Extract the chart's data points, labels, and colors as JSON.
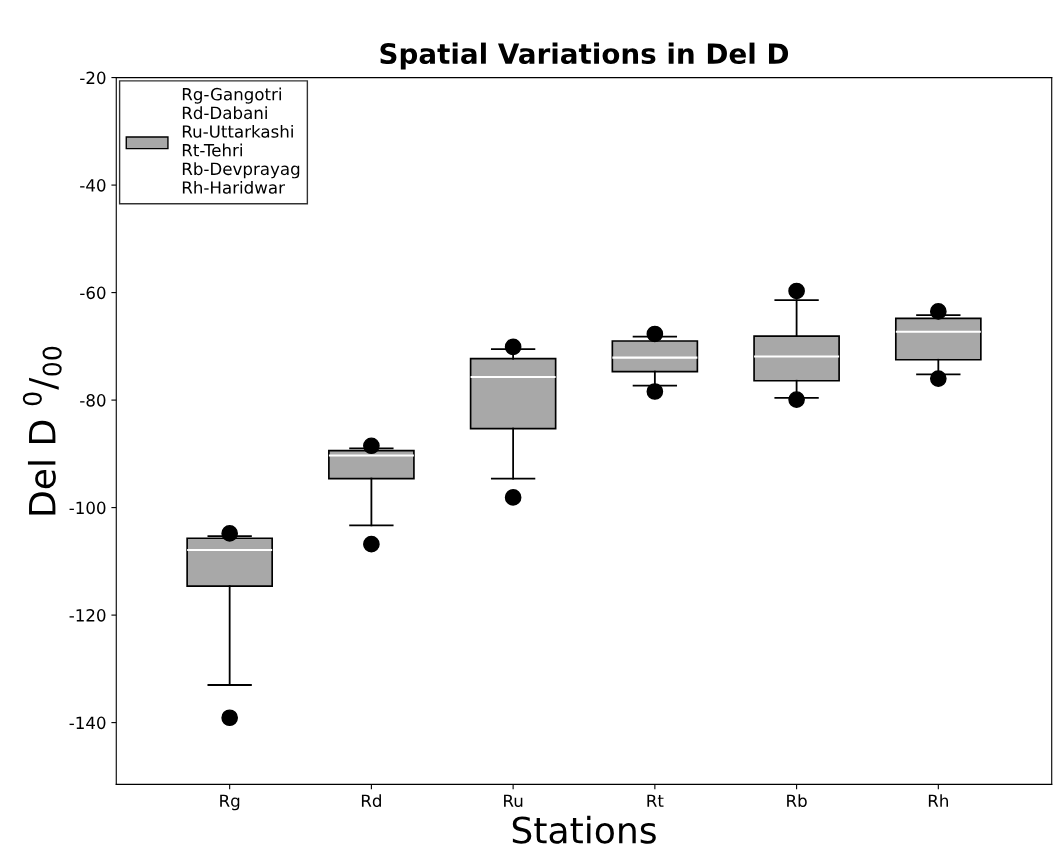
{
  "chart_data": {
    "type": "box",
    "title": "Spatial Variations in Del D",
    "xlabel": "Stations",
    "ylabel": "Del D $^{0}$/$_{00}$",
    "categories": [
      "Rg",
      "Rd",
      "Ru",
      "Rt",
      "Rb",
      "Rh"
    ],
    "series": [
      {
        "name": "Rg-Gangotri\nRd-Dabani\nRu-Uttarkashi\nRt-Tehri\nRb-Devprayag\nRh-Haridwar",
        "color": "#a8a8a8",
        "boxes": [
          {
            "low": -133.0,
            "q1": -114.6,
            "median": -107.9,
            "q3": -105.7,
            "high": -105.3,
            "outliers": [
              -139.1,
              -104.8
            ]
          },
          {
            "low": -103.3,
            "q1": -94.6,
            "median": -90.3,
            "q3": -89.4,
            "high": -89.0,
            "outliers": [
              -106.8,
              -88.5
            ]
          },
          {
            "low": -94.6,
            "q1": -85.3,
            "median": -75.7,
            "q3": -72.3,
            "high": -70.5,
            "outliers": [
              -98.1,
              -70.1
            ]
          },
          {
            "low": -77.3,
            "q1": -74.7,
            "median": -72.1,
            "q3": -69.0,
            "high": -68.2,
            "outliers": [
              -78.4,
              -67.7
            ]
          },
          {
            "low": -79.6,
            "q1": -76.4,
            "median": -71.9,
            "q3": -68.1,
            "high": -61.4,
            "outliers": [
              -79.9,
              -59.7
            ]
          },
          {
            "low": -75.2,
            "q1": -72.5,
            "median": -67.3,
            "q3": -64.8,
            "high": -64.2,
            "outliers": [
              -76.0,
              -63.5
            ]
          }
        ]
      }
    ],
    "ylim": [
      -151.5,
      -20
    ],
    "yticks": [
      -20,
      -40,
      -60,
      -80,
      -100,
      -120,
      -140
    ],
    "grid": false,
    "legend": "top left"
  }
}
